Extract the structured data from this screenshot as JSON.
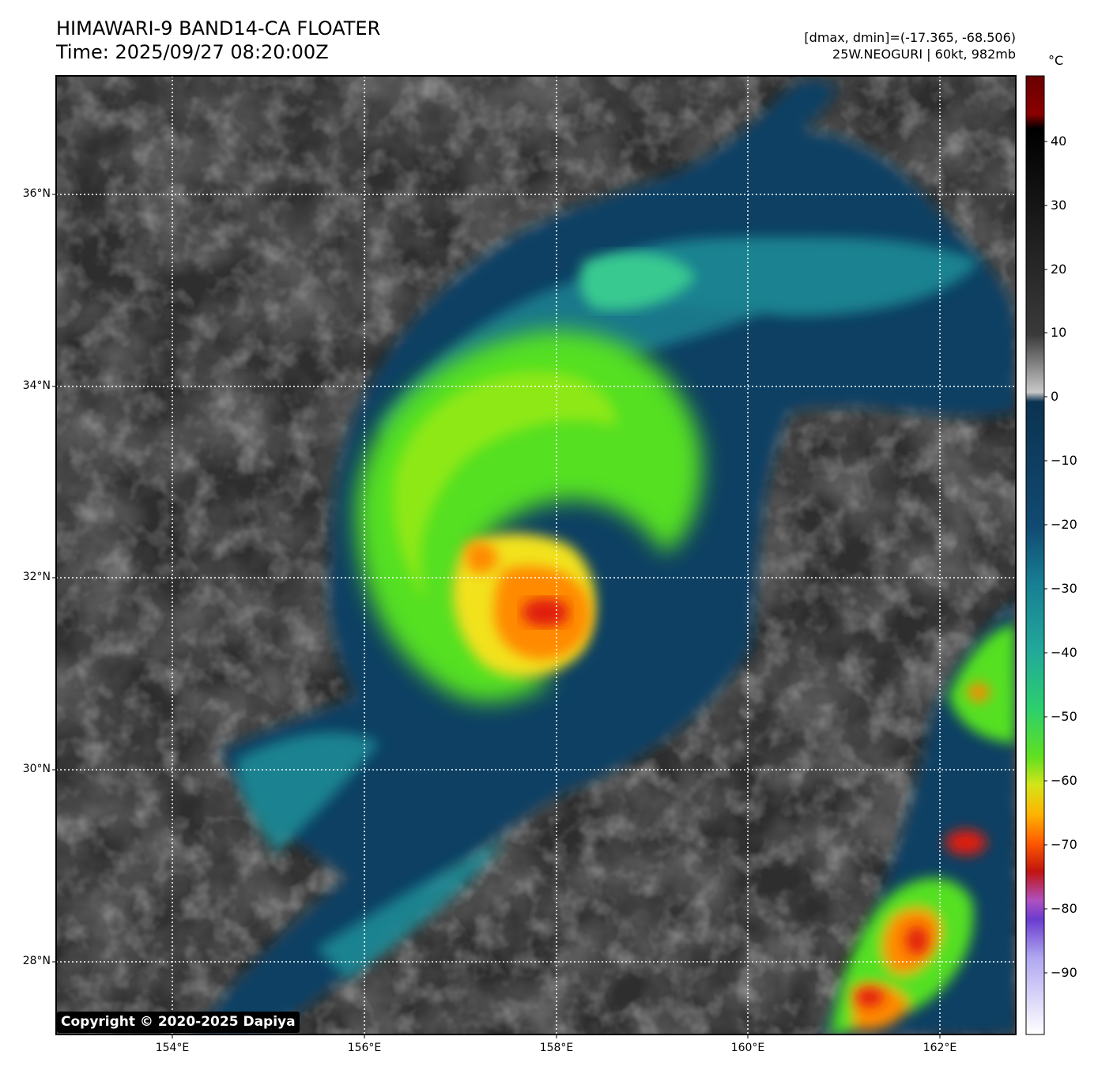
{
  "header": {
    "title": "HIMAWARI-9 BAND14-CA FLOATER",
    "time": "Time: 2025/09/27 08:20:00Z",
    "dminmax": "[dmax, dmin]=(-17.365, -68.506)",
    "storm": "25W.NEOGURI | 60kt, 982mb"
  },
  "map": {
    "lat_labels": [
      "36°N",
      "34°N",
      "32°N",
      "30°N",
      "28°N"
    ],
    "lon_labels": [
      "154°E",
      "156°E",
      "158°E",
      "160°E",
      "162°E"
    ],
    "copyright": "Copyright © 2020-2025 Dapiya"
  },
  "colorbar": {
    "unit": "°C",
    "ticks": [
      "40",
      "30",
      "20",
      "10",
      "0",
      "−10",
      "−20",
      "−30",
      "−40",
      "−50",
      "−60",
      "−70",
      "−80",
      "−90"
    ],
    "colors": {
      "warm_black": "#000000",
      "gray": "#9a9a9a",
      "dark_teal": "#0b3d5c",
      "teal": "#1e90a0",
      "green": "#44e02a",
      "yellow": "#f2e21a",
      "orange": "#ff8a00",
      "red": "#e01e10",
      "dark_red": "#6a0000",
      "purple": "#7a45d8",
      "white": "#f4f4ff"
    }
  }
}
